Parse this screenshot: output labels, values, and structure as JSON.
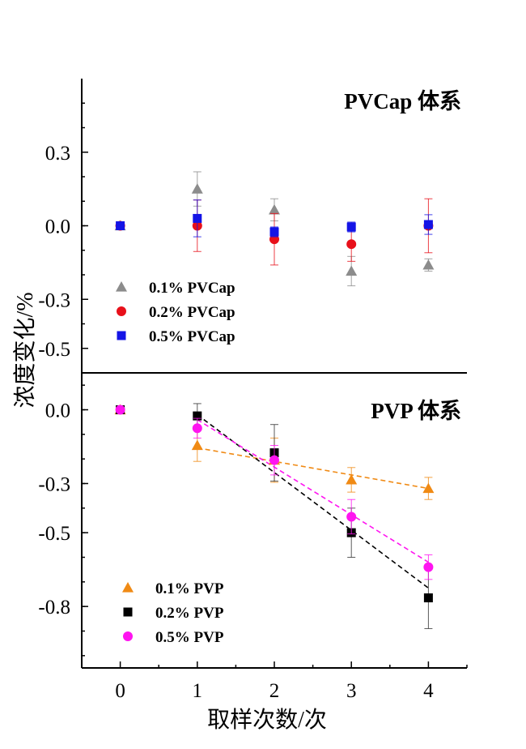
{
  "chart_data": [
    {
      "type": "scatter",
      "title": "PVCap 体系",
      "xlabel": "取样次数/次",
      "ylabel": "浓度变化/%",
      "xlim": [
        -0.5,
        4.5
      ],
      "ylim": [
        -0.6,
        0.6
      ],
      "yticks": [
        0.3,
        0.0,
        -0.3,
        -0.5
      ],
      "ytick_labels": [
        "0.3",
        "0.0",
        "-0.3",
        "-0.5"
      ],
      "legend": "lower-left",
      "series": [
        {
          "name": "0.1% PVCap",
          "marker": "triangle",
          "color": "#8c8c8c",
          "points": [
            {
              "x": 0,
              "y": 0.0,
              "err": 0.01
            },
            {
              "x": 1,
              "y": 0.15,
              "err": 0.07
            },
            {
              "x": 2,
              "y": 0.065,
              "err": 0.045
            },
            {
              "x": 3,
              "y": -0.185,
              "err": 0.06
            },
            {
              "x": 4,
              "y": -0.16,
              "err": 0.025
            }
          ]
        },
        {
          "name": "0.2% PVCap",
          "marker": "circle",
          "color": "#e8101a",
          "points": [
            {
              "x": 0,
              "y": 0.0,
              "err": 0.01
            },
            {
              "x": 1,
              "y": 0.0,
              "err": 0.105
            },
            {
              "x": 2,
              "y": -0.055,
              "err": 0.105
            },
            {
              "x": 3,
              "y": -0.075,
              "err": 0.07
            },
            {
              "x": 4,
              "y": 0.0,
              "err": 0.11
            }
          ]
        },
        {
          "name": "0.5% PVCap",
          "marker": "square",
          "color": "#1414e6",
          "points": [
            {
              "x": 0,
              "y": 0.0,
              "err": 0.01
            },
            {
              "x": 1,
              "y": 0.03,
              "err": 0.075
            },
            {
              "x": 2,
              "y": -0.025,
              "err": 0.02
            },
            {
              "x": 3,
              "y": -0.005,
              "err": 0.02
            },
            {
              "x": 4,
              "y": 0.005,
              "err": 0.04
            }
          ]
        }
      ]
    },
    {
      "type": "scatter",
      "title": "PVP 体系",
      "xlabel": "取样次数/次",
      "ylabel": "浓度变化/%",
      "xlim": [
        -0.5,
        4.5
      ],
      "ylim": [
        -1.05,
        0.15
      ],
      "xticks": [
        0,
        1,
        2,
        3,
        4
      ],
      "xtick_labels": [
        "0",
        "1",
        "2",
        "3",
        "4"
      ],
      "yticks": [
        0.0,
        -0.3,
        -0.5,
        -0.8
      ],
      "ytick_labels": [
        "0.0",
        "-0.3",
        "-0.5",
        "-0.8"
      ],
      "legend": "lower-left",
      "series": [
        {
          "name": "0.1% PVP",
          "marker": "triangle",
          "color": "#f08a14",
          "trendline": {
            "x": [
              1,
              4
            ],
            "y": [
              -0.155,
              -0.32
            ]
          },
          "points": [
            {
              "x": 0,
              "y": 0.0,
              "err": 0.01
            },
            {
              "x": 1,
              "y": -0.145,
              "err": 0.065
            },
            {
              "x": 2,
              "y": -0.205,
              "err": 0.09
            },
            {
              "x": 3,
              "y": -0.285,
              "err": 0.05
            },
            {
              "x": 4,
              "y": -0.32,
              "err": 0.045
            }
          ]
        },
        {
          "name": "0.2% PVP",
          "marker": "square",
          "color": "#000000",
          "trendline": {
            "x": [
              1,
              4
            ],
            "y": [
              -0.02,
              -0.725
            ]
          },
          "points": [
            {
              "x": 0,
              "y": 0.0,
              "err": 0.01
            },
            {
              "x": 1,
              "y": -0.025,
              "err": 0.05
            },
            {
              "x": 2,
              "y": -0.175,
              "err": 0.115
            },
            {
              "x": 3,
              "y": -0.5,
              "err": 0.1
            },
            {
              "x": 4,
              "y": -0.765,
              "err": 0.125
            }
          ]
        },
        {
          "name": "0.5% PVP",
          "marker": "circle",
          "color": "#ff14f0",
          "trendline": {
            "x": [
              1,
              4
            ],
            "y": [
              -0.04,
              -0.62
            ]
          },
          "points": [
            {
              "x": 0,
              "y": 0.0,
              "err": 0.01
            },
            {
              "x": 1,
              "y": -0.075,
              "err": 0.04
            },
            {
              "x": 2,
              "y": -0.205,
              "err": 0.06
            },
            {
              "x": 3,
              "y": -0.435,
              "err": 0.07
            },
            {
              "x": 4,
              "y": -0.64,
              "err": 0.05
            }
          ]
        }
      ]
    }
  ]
}
